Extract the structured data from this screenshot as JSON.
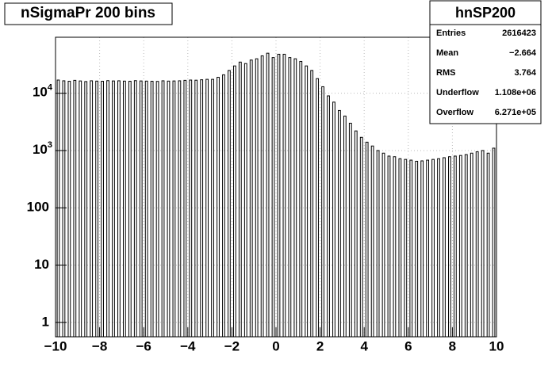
{
  "chart_data": {
    "type": "histogram",
    "title": "nSigmaPr 200 bins",
    "bins": [
      -10,
      -9.75,
      -9.5,
      -9.25,
      -9,
      -8.75,
      -8.5,
      -8.25,
      -8,
      -7.75,
      -7.5,
      -7.25,
      -7,
      -6.75,
      -6.5,
      -6.25,
      -6,
      -5.75,
      -5.5,
      -5.25,
      -5,
      -4.75,
      -4.5,
      -4.25,
      -4,
      -3.75,
      -3.5,
      -3.25,
      -3,
      -2.75,
      -2.5,
      -2.25,
      -2,
      -1.75,
      -1.5,
      -1.25,
      -1,
      -0.75,
      -0.5,
      -0.25,
      0,
      0.25,
      0.5,
      0.75,
      1,
      1.25,
      1.5,
      1.75,
      2,
      2.25,
      2.5,
      2.75,
      3,
      3.25,
      3.5,
      3.75,
      4,
      4.25,
      4.5,
      4.75,
      5,
      5.25,
      5.5,
      5.75,
      6,
      6.25,
      6.5,
      6.75,
      7,
      7.25,
      7.5,
      7.75,
      8,
      8.25,
      8.5,
      8.75,
      9,
      9.25,
      9.5,
      9.75,
      10
    ],
    "values": [
      17000,
      16500,
      16200,
      16800,
      16400,
      16000,
      16500,
      16300,
      16200,
      16600,
      16400,
      16500,
      16300,
      16200,
      16600,
      16400,
      16300,
      16200,
      16100,
      16500,
      16300,
      16400,
      16500,
      16800,
      17000,
      16900,
      17200,
      17500,
      17500,
      19000,
      21000,
      25000,
      30000,
      35000,
      33000,
      38000,
      40000,
      45000,
      50000,
      42000,
      48000,
      48000,
      42000,
      40000,
      36000,
      30000,
      25000,
      18000,
      13000,
      9000,
      7000,
      5000,
      4000,
      3000,
      2200,
      1700,
      1400,
      1200,
      1000,
      900,
      800,
      780,
      720,
      700,
      680,
      650,
      660,
      680,
      700,
      720,
      750,
      780,
      800,
      820,
      850,
      900,
      950,
      1000,
      900,
      1100
    ],
    "color": "#000000",
    "xlim": [
      -10,
      10
    ],
    "xticks": [
      {
        "value": -10,
        "label": "−10"
      },
      {
        "value": -8,
        "label": "−8"
      },
      {
        "value": -6,
        "label": "−6"
      },
      {
        "value": -4,
        "label": "−4"
      },
      {
        "value": -2,
        "label": "−2"
      },
      0,
      2,
      4,
      6,
      8,
      10
    ],
    "ylim": [
      0.56,
      95000
    ],
    "log_y": true,
    "yticks": [
      1,
      10,
      100,
      {
        "value": 1000,
        "label": "10^3"
      },
      {
        "value": 10000,
        "label": "10^4"
      }
    ],
    "yticks_labels_plain": null,
    "grid": true,
    "stats": {
      "title": "hnSP200",
      "rows": [
        [
          "Entries",
          "2616423"
        ],
        [
          "Mean",
          "−2.664"
        ],
        [
          "RMS",
          "3.764"
        ],
        [
          "Underflow",
          "1.108e+06"
        ],
        [
          "Overflow",
          "6.271e+05"
        ]
      ]
    }
  }
}
